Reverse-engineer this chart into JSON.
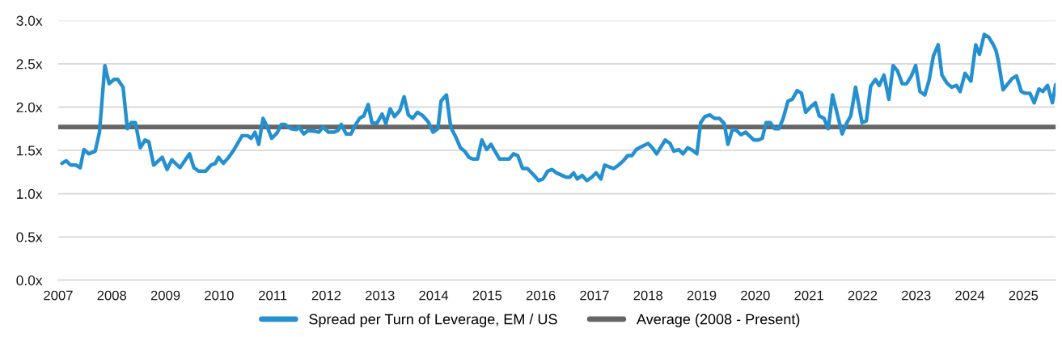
{
  "chart_data": {
    "type": "line",
    "x": [
      2007.07,
      2007.15,
      2007.23,
      2007.33,
      2007.41,
      2007.48,
      2007.57,
      2007.69,
      2007.77,
      2007.87,
      2007.95,
      2008.04,
      2008.11,
      2008.21,
      2008.29,
      2008.36,
      2008.44,
      2008.53,
      2008.62,
      2008.69,
      2008.78,
      2008.94,
      2009.03,
      2009.12,
      2009.27,
      2009.45,
      2009.53,
      2009.62,
      2009.75,
      2009.85,
      2009.93,
      2009.99,
      2010.08,
      2010.18,
      2010.28,
      2010.43,
      2010.53,
      2010.6,
      2010.67,
      2010.74,
      2010.82,
      2010.9,
      2010.98,
      2011.08,
      2011.16,
      2011.23,
      2011.34,
      2011.44,
      2011.49,
      2011.58,
      2011.66,
      2011.79,
      2011.86,
      2011.94,
      2012.04,
      2012.14,
      2012.22,
      2012.28,
      2012.37,
      2012.46,
      2012.54,
      2012.62,
      2012.7,
      2012.78,
      2012.85,
      2012.94,
      2013.04,
      2013.11,
      2013.19,
      2013.27,
      2013.37,
      2013.45,
      2013.53,
      2013.61,
      2013.7,
      2013.8,
      2013.9,
      2013.99,
      2014.08,
      2014.14,
      2014.24,
      2014.32,
      2014.41,
      2014.5,
      2014.58,
      2014.66,
      2014.73,
      2014.82,
      2014.9,
      2014.99,
      2015.07,
      2015.23,
      2015.41,
      2015.49,
      2015.57,
      2015.66,
      2015.75,
      2015.86,
      2015.96,
      2016.04,
      2016.13,
      2016.21,
      2016.29,
      2016.4,
      2016.47,
      2016.54,
      2016.61,
      2016.68,
      2016.77,
      2016.86,
      2016.95,
      2017.03,
      2017.12,
      2017.19,
      2017.27,
      2017.36,
      2017.45,
      2017.54,
      2017.62,
      2017.7,
      2017.78,
      2017.87,
      2018.0,
      2018.08,
      2018.16,
      2018.23,
      2018.32,
      2018.41,
      2018.48,
      2018.57,
      2018.65,
      2018.74,
      2018.83,
      2018.91,
      2018.98,
      2019.06,
      2019.15,
      2019.24,
      2019.33,
      2019.42,
      2019.49,
      2019.57,
      2019.65,
      2019.73,
      2019.82,
      2019.97,
      2020.06,
      2020.13,
      2020.2,
      2020.28,
      2020.36,
      2020.44,
      2020.52,
      2020.61,
      2020.69,
      2020.78,
      2020.86,
      2020.94,
      2021.03,
      2021.12,
      2021.19,
      2021.28,
      2021.36,
      2021.44,
      2021.62,
      2021.7,
      2021.78,
      2021.87,
      2021.99,
      2022.07,
      2022.15,
      2022.24,
      2022.31,
      2022.4,
      2022.49,
      2022.57,
      2022.65,
      2022.74,
      2022.82,
      2022.91,
      2022.99,
      2023.07,
      2023.16,
      2023.24,
      2023.32,
      2023.41,
      2023.48,
      2023.57,
      2023.66,
      2023.75,
      2023.82,
      2023.91,
      2024.02,
      2024.11,
      2024.18,
      2024.27,
      2024.35,
      2024.43,
      2024.49,
      2024.53,
      2024.62,
      2024.71,
      2024.79,
      2024.87,
      2024.96,
      2025.03,
      2025.12,
      2025.2,
      2025.29,
      2025.36,
      2025.45,
      2025.54,
      2025.6
    ],
    "series": [
      {
        "name": "Spread per Turn of Leverage, EM / US",
        "color": "#2490d0",
        "values": [
          1.35,
          1.38,
          1.33,
          1.33,
          1.3,
          1.51,
          1.46,
          1.49,
          1.71,
          2.48,
          2.27,
          2.32,
          2.32,
          2.23,
          1.75,
          1.82,
          1.82,
          1.53,
          1.62,
          1.6,
          1.33,
          1.42,
          1.28,
          1.39,
          1.3,
          1.46,
          1.3,
          1.26,
          1.26,
          1.33,
          1.35,
          1.42,
          1.35,
          1.42,
          1.51,
          1.67,
          1.67,
          1.64,
          1.71,
          1.57,
          1.87,
          1.77,
          1.64,
          1.7,
          1.8,
          1.8,
          1.75,
          1.74,
          1.77,
          1.69,
          1.73,
          1.72,
          1.71,
          1.77,
          1.71,
          1.71,
          1.73,
          1.8,
          1.69,
          1.69,
          1.79,
          1.87,
          1.9,
          2.03,
          1.82,
          1.81,
          1.92,
          1.81,
          1.98,
          1.89,
          1.96,
          2.12,
          1.91,
          1.87,
          1.94,
          1.9,
          1.83,
          1.71,
          1.75,
          2.07,
          2.14,
          1.77,
          1.66,
          1.53,
          1.49,
          1.42,
          1.4,
          1.4,
          1.62,
          1.51,
          1.57,
          1.4,
          1.4,
          1.46,
          1.44,
          1.29,
          1.29,
          1.22,
          1.15,
          1.17,
          1.26,
          1.28,
          1.24,
          1.21,
          1.19,
          1.19,
          1.24,
          1.17,
          1.21,
          1.15,
          1.19,
          1.24,
          1.17,
          1.33,
          1.31,
          1.29,
          1.33,
          1.38,
          1.44,
          1.44,
          1.51,
          1.54,
          1.58,
          1.53,
          1.46,
          1.53,
          1.62,
          1.58,
          1.49,
          1.51,
          1.46,
          1.53,
          1.5,
          1.46,
          1.82,
          1.89,
          1.91,
          1.87,
          1.87,
          1.81,
          1.57,
          1.74,
          1.73,
          1.68,
          1.71,
          1.62,
          1.62,
          1.64,
          1.82,
          1.82,
          1.75,
          1.75,
          1.87,
          2.07,
          2.09,
          2.19,
          2.16,
          1.94,
          2.0,
          2.05,
          1.9,
          1.87,
          1.75,
          2.14,
          1.69,
          1.81,
          1.9,
          2.23,
          1.82,
          1.84,
          2.24,
          2.32,
          2.25,
          2.37,
          2.09,
          2.48,
          2.42,
          2.27,
          2.27,
          2.36,
          2.48,
          2.18,
          2.14,
          2.31,
          2.59,
          2.72,
          2.37,
          2.28,
          2.23,
          2.25,
          2.18,
          2.39,
          2.3,
          2.72,
          2.61,
          2.84,
          2.81,
          2.73,
          2.65,
          2.54,
          2.2,
          2.27,
          2.33,
          2.36,
          2.18,
          2.16,
          2.16,
          2.05,
          2.21,
          2.18,
          2.25,
          2.05,
          2.26
        ]
      }
    ],
    "ref_lines": [
      {
        "axis": "y",
        "value": 1.77,
        "label": "Average (2008 - Present)",
        "color": "#666666"
      }
    ],
    "xlim": [
      2007,
      2025.6
    ],
    "xticks": [
      2007,
      2008,
      2009,
      2010,
      2011,
      2012,
      2013,
      2014,
      2015,
      2016,
      2017,
      2018,
      2019,
      2020,
      2021,
      2022,
      2023,
      2024,
      2025
    ],
    "ylim": [
      0,
      3
    ],
    "yticks": [
      {
        "value": 0,
        "label": "0.0x"
      },
      {
        "value": 0.5,
        "label": "0.5x"
      },
      {
        "value": 1,
        "label": "1.0x"
      },
      {
        "value": 1.5,
        "label": "1.5x"
      },
      {
        "value": 2,
        "label": "2.0x"
      },
      {
        "value": 2.5,
        "label": "2.5x"
      },
      {
        "value": 3,
        "label": "3.0x"
      }
    ],
    "grid": "y",
    "legend": "bottom",
    "line_style": "solid"
  }
}
